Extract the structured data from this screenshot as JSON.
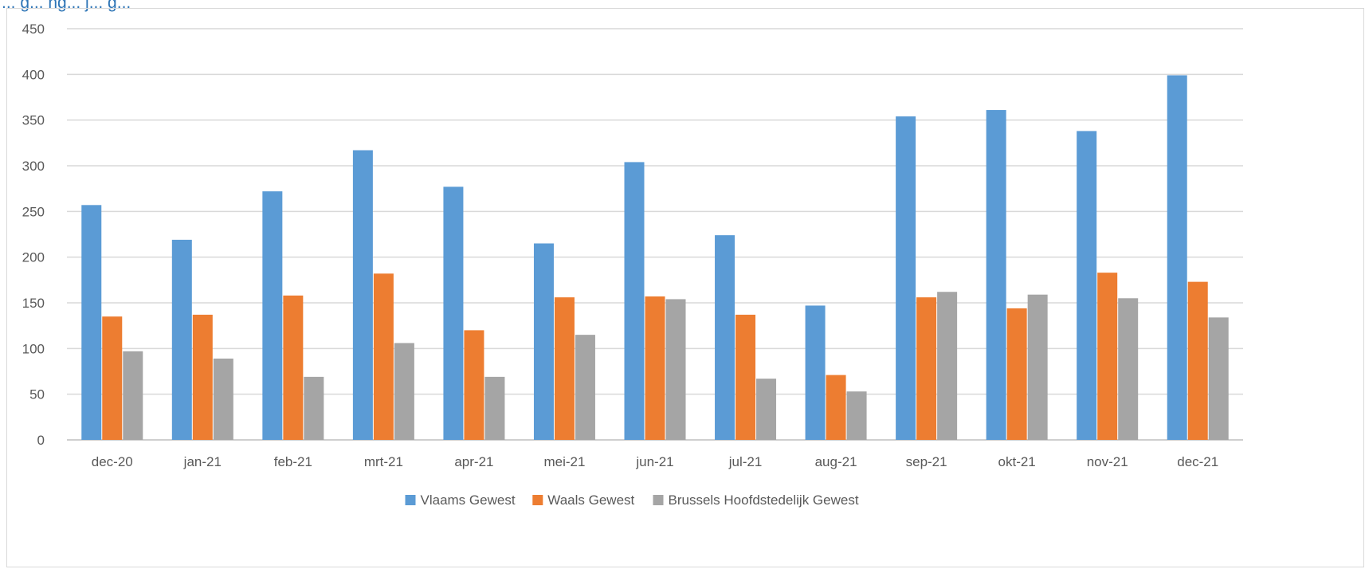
{
  "header": {
    "title_fragment": "... g... ng... j... g..."
  },
  "chart_data": {
    "type": "bar",
    "categories": [
      "dec-20",
      "jan-21",
      "feb-21",
      "mrt-21",
      "apr-21",
      "mei-21",
      "jun-21",
      "jul-21",
      "aug-21",
      "sep-21",
      "okt-21",
      "nov-21",
      "dec-21"
    ],
    "series": [
      {
        "name": "Vlaams Gewest",
        "color": "#5b9bd5",
        "values": [
          257,
          219,
          272,
          317,
          277,
          215,
          304,
          224,
          147,
          354,
          361,
          338,
          399
        ]
      },
      {
        "name": "Waals Gewest",
        "color": "#ed7d31",
        "values": [
          135,
          137,
          158,
          182,
          120,
          156,
          157,
          137,
          71,
          156,
          144,
          183,
          173
        ]
      },
      {
        "name": "Brussels Hoofdstedelijk Gewest",
        "color": "#a5a5a5",
        "values": [
          97,
          89,
          69,
          106,
          69,
          115,
          154,
          67,
          53,
          162,
          159,
          155,
          134
        ]
      }
    ],
    "yticks": [
      0,
      50,
      100,
      150,
      200,
      250,
      300,
      350,
      400,
      450
    ],
    "ylim": [
      0,
      450
    ],
    "grid": true,
    "legend_position": "bottom"
  }
}
